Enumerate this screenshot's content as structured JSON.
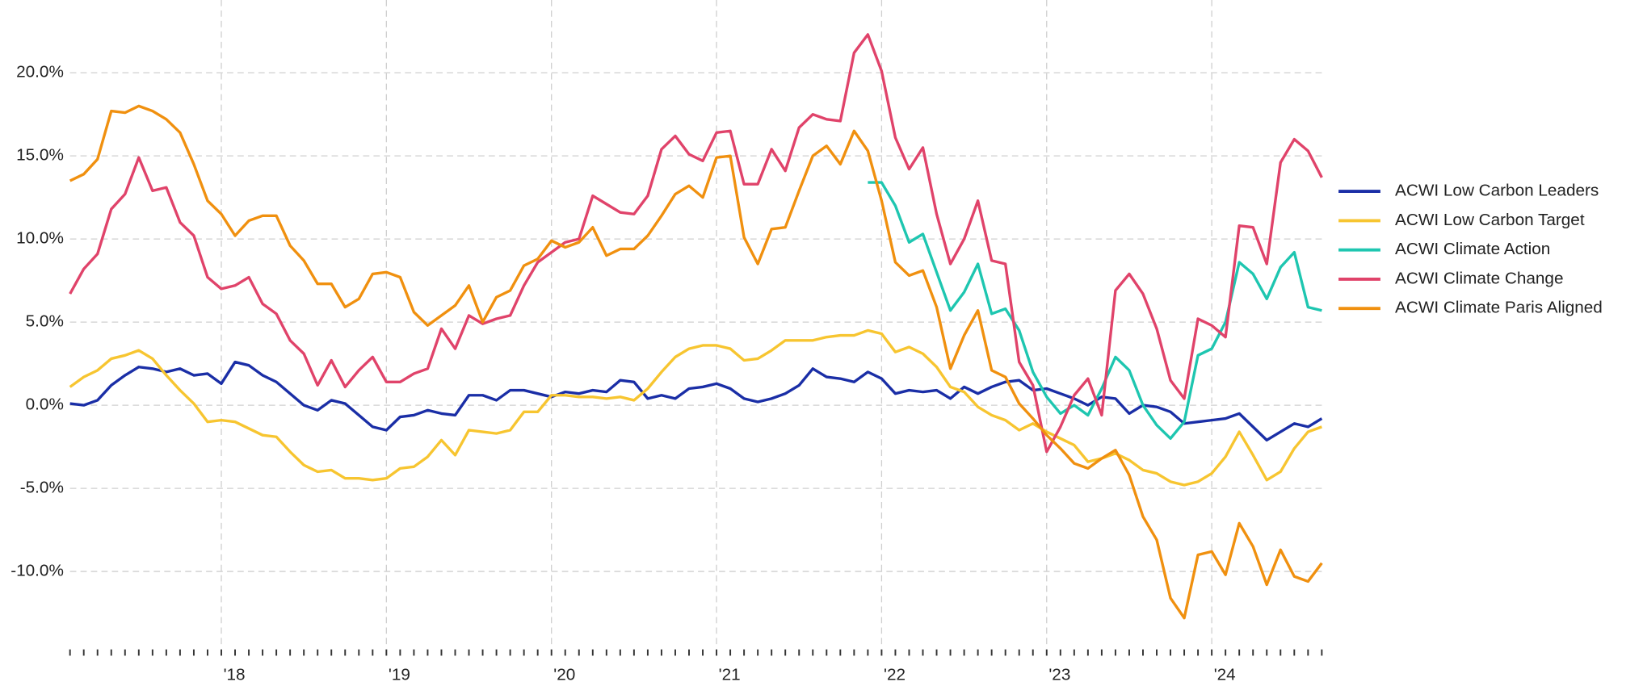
{
  "chart_data": {
    "type": "line",
    "categories": [
      null,
      null,
      null,
      null,
      null,
      null,
      null,
      null,
      null,
      null,
      null,
      "'18",
      null,
      null,
      null,
      null,
      null,
      null,
      null,
      null,
      null,
      null,
      null,
      "'19",
      null,
      null,
      null,
      null,
      null,
      null,
      null,
      null,
      null,
      null,
      null,
      "'20",
      null,
      null,
      null,
      null,
      null,
      null,
      null,
      null,
      null,
      null,
      null,
      "'21",
      null,
      null,
      null,
      null,
      null,
      null,
      null,
      null,
      null,
      null,
      null,
      "'22",
      null,
      null,
      null,
      null,
      null,
      null,
      null,
      null,
      null,
      null,
      null,
      "'23",
      null,
      null,
      null,
      null,
      null,
      null,
      null,
      null,
      null,
      null,
      null,
      "'24",
      null,
      null,
      null,
      null,
      null,
      null,
      null,
      null
    ],
    "series": [
      {
        "name": "ACWI Low Carbon Leaders",
        "color": "#1a2ea6",
        "values": [
          0.1,
          0.0,
          0.3,
          1.2,
          1.8,
          2.3,
          2.2,
          2.0,
          2.2,
          1.8,
          1.9,
          1.3,
          2.6,
          2.4,
          1.8,
          1.4,
          0.7,
          0.0,
          -0.3,
          0.3,
          0.1,
          -0.6,
          -1.3,
          -1.5,
          -0.7,
          -0.6,
          -0.3,
          -0.5,
          -0.6,
          0.6,
          0.6,
          0.3,
          0.9,
          0.9,
          0.7,
          0.5,
          0.8,
          0.7,
          0.9,
          0.8,
          1.5,
          1.4,
          0.4,
          0.6,
          0.4,
          1.0,
          1.1,
          1.3,
          1.0,
          0.4,
          0.2,
          0.4,
          0.7,
          1.2,
          2.2,
          1.7,
          1.6,
          1.4,
          2.0,
          1.6,
          0.7,
          0.9,
          0.8,
          0.9,
          0.4,
          1.1,
          0.7,
          1.1,
          1.4,
          1.5,
          0.9,
          1.0,
          0.7,
          0.4,
          0.0,
          0.5,
          0.4,
          -0.5,
          0.0,
          -0.1,
          -0.4,
          -1.1,
          -1.0,
          -0.9,
          -0.8,
          -0.5,
          -1.3,
          -2.1,
          -1.6,
          -1.1,
          -1.3,
          -0.8
        ]
      },
      {
        "name": "ACWI Low Carbon Target",
        "color": "#f7c530",
        "values": [
          1.1,
          1.7,
          2.1,
          2.8,
          3.0,
          3.3,
          2.8,
          1.8,
          0.9,
          0.1,
          -1.0,
          -0.9,
          -1.0,
          -1.4,
          -1.8,
          -1.9,
          -2.8,
          -3.6,
          -4.0,
          -3.9,
          -4.4,
          -4.4,
          -4.5,
          -4.4,
          -3.8,
          -3.7,
          -3.1,
          -2.1,
          -3.0,
          -1.5,
          -1.6,
          -1.7,
          -1.5,
          -0.4,
          -0.4,
          0.6,
          0.6,
          0.5,
          0.5,
          0.4,
          0.5,
          0.3,
          1.0,
          2.0,
          2.9,
          3.4,
          3.6,
          3.6,
          3.4,
          2.7,
          2.8,
          3.3,
          3.9,
          3.9,
          3.9,
          4.1,
          4.2,
          4.2,
          4.5,
          4.3,
          3.2,
          3.5,
          3.1,
          2.3,
          1.1,
          0.8,
          -0.1,
          -0.6,
          -0.9,
          -1.5,
          -1.1,
          -1.6,
          -2.0,
          -2.4,
          -3.4,
          -3.2,
          -2.9,
          -3.3,
          -3.9,
          -4.1,
          -4.6,
          -4.8,
          -4.6,
          -4.1,
          -3.1,
          -1.6,
          -3.0,
          -4.5,
          -4.0,
          -2.6,
          -1.6,
          -1.3
        ]
      },
      {
        "name": "ACWI Climate Action",
        "color": "#1ec6b0",
        "values": [
          null,
          null,
          null,
          null,
          null,
          null,
          null,
          null,
          null,
          null,
          null,
          null,
          null,
          null,
          null,
          null,
          null,
          null,
          null,
          null,
          null,
          null,
          null,
          null,
          null,
          null,
          null,
          null,
          null,
          null,
          null,
          null,
          null,
          null,
          null,
          null,
          null,
          null,
          null,
          null,
          null,
          null,
          null,
          null,
          null,
          null,
          null,
          null,
          null,
          null,
          null,
          null,
          null,
          null,
          null,
          null,
          null,
          null,
          13.4,
          13.4,
          12.0,
          9.8,
          10.3,
          8.0,
          5.7,
          6.8,
          8.5,
          5.5,
          5.8,
          4.5,
          2.0,
          0.5,
          -0.5,
          0.0,
          -0.6,
          1.0,
          2.9,
          2.1,
          0.0,
          -1.2,
          -2.0,
          -1.0,
          3.0,
          3.4,
          5.0,
          8.6,
          7.9,
          6.4,
          8.3,
          9.2,
          5.9,
          5.7
        ]
      },
      {
        "name": "ACWI Climate Change",
        "color": "#e0436a",
        "values": [
          6.7,
          8.2,
          9.1,
          11.8,
          12.7,
          14.9,
          12.9,
          13.1,
          11.0,
          10.2,
          7.7,
          7.0,
          7.2,
          7.7,
          6.1,
          5.5,
          3.9,
          3.1,
          1.2,
          2.7,
          1.1,
          2.1,
          2.9,
          1.4,
          1.4,
          1.9,
          2.2,
          4.6,
          3.4,
          5.4,
          4.9,
          5.2,
          5.4,
          7.2,
          8.6,
          9.2,
          9.8,
          10.0,
          12.6,
          12.1,
          11.6,
          11.5,
          12.6,
          15.4,
          16.2,
          15.1,
          14.7,
          16.4,
          16.5,
          13.3,
          13.3,
          15.4,
          14.1,
          16.7,
          17.5,
          17.2,
          17.1,
          21.2,
          22.3,
          20.1,
          16.1,
          14.2,
          15.5,
          11.5,
          8.5,
          10.0,
          12.3,
          8.7,
          8.5,
          2.6,
          1.2,
          -2.8,
          -1.3,
          0.6,
          1.6,
          -0.6,
          6.9,
          7.9,
          6.7,
          4.6,
          1.5,
          0.4,
          5.2,
          4.8,
          4.1,
          10.8,
          10.7,
          8.5,
          14.6,
          16.0,
          15.3,
          13.7
        ]
      },
      {
        "name": "ACWI Climate Paris Aligned",
        "color": "#f0900f",
        "values": [
          13.5,
          13.9,
          14.8,
          17.7,
          17.6,
          18.0,
          17.7,
          17.2,
          16.4,
          14.5,
          12.3,
          11.5,
          10.2,
          11.1,
          11.4,
          11.4,
          9.6,
          8.7,
          7.3,
          7.3,
          5.9,
          6.4,
          7.9,
          8.0,
          7.7,
          5.6,
          4.8,
          5.4,
          6.0,
          7.2,
          5.0,
          6.5,
          6.9,
          8.4,
          8.8,
          9.9,
          9.5,
          9.8,
          10.7,
          9.0,
          9.4,
          9.4,
          10.2,
          11.4,
          12.7,
          13.2,
          12.5,
          14.9,
          15.0,
          10.1,
          8.5,
          10.6,
          10.7,
          12.9,
          15.0,
          15.6,
          14.5,
          16.5,
          15.3,
          12.3,
          8.6,
          7.8,
          8.1,
          5.9,
          2.2,
          4.2,
          5.7,
          2.1,
          1.7,
          0.1,
          -0.8,
          -1.8,
          -2.6,
          -3.5,
          -3.8,
          -3.2,
          -2.7,
          -4.2,
          -6.7,
          -8.1,
          -11.6,
          -12.8,
          -9.0,
          -8.8,
          -10.2,
          -7.1,
          -8.5,
          -10.8,
          -8.7,
          -10.3,
          -10.6,
          -9.5
        ]
      }
    ],
    "ylim": [
      -14.5,
      24
    ],
    "yticks": [
      {
        "value": -10,
        "label": "-10.0%"
      },
      {
        "value": -5,
        "label": "-5.0%"
      },
      {
        "value": 0,
        "label": "0.0%"
      },
      {
        "value": 5,
        "label": "5.0%"
      },
      {
        "value": 10,
        "label": "10.0%"
      },
      {
        "value": 15,
        "label": "15.0%"
      },
      {
        "value": 20,
        "label": "20.0%"
      }
    ],
    "grid": true,
    "legend": "right"
  }
}
